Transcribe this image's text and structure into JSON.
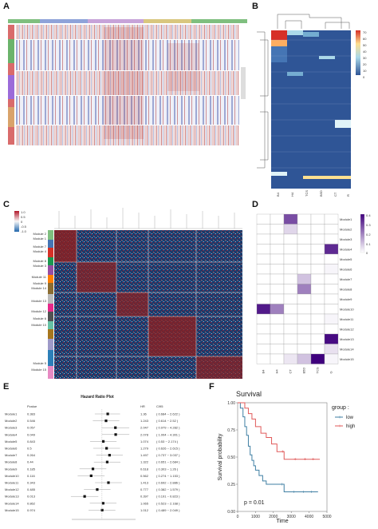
{
  "panels": {
    "A": "A",
    "B": "B",
    "C": "C",
    "D": "D",
    "E": "E",
    "F": "F"
  },
  "panel_b": {
    "legend_ticks": [
      "70",
      "60",
      "50",
      "40",
      "30",
      "20",
      "10",
      "0"
    ],
    "col_labels": [
      "B4",
      "H4",
      "TCS",
      "B5D",
      "CT",
      "R"
    ]
  },
  "panel_c": {
    "legend_ticks": [
      "1.0",
      "0.5",
      "0",
      "-0.5",
      "-1.0"
    ],
    "modules": [
      "Module 2",
      "Module 1",
      "Module 7",
      "Module 4",
      "Module 8",
      "Module 3",
      "Module 11",
      "Module 9",
      "Module 14",
      "Module 13",
      "Module 12",
      "Module 6",
      "Module 10",
      "Module 5",
      "Module 15"
    ]
  },
  "panel_d": {
    "columns": [
      "B4",
      "H4",
      "CT",
      "B5D",
      "TCS",
      "G"
    ],
    "modules": [
      "Module1",
      "Module2",
      "Module3",
      "Module4",
      "Module5",
      "Module6",
      "Module7",
      "Module8",
      "Module9",
      "Module10",
      "Module11",
      "Module12",
      "Module13",
      "Module14",
      "Module15"
    ],
    "legend_ticks": [
      "0.4",
      "0.3",
      "0.2",
      "0.1",
      "0"
    ],
    "cells": [
      [
        0,
        0,
        0.35,
        0,
        0,
        0
      ],
      [
        0,
        0,
        0.08,
        0,
        0,
        0
      ],
      [
        0,
        0,
        0,
        0,
        0,
        0
      ],
      [
        0,
        0,
        0,
        0,
        0,
        0.42
      ],
      [
        0,
        0,
        0,
        0,
        0,
        0
      ],
      [
        0,
        0,
        0,
        0,
        0,
        0.02
      ],
      [
        0,
        0,
        0,
        0.12,
        0,
        0
      ],
      [
        0,
        0,
        0,
        0.25,
        0,
        0
      ],
      [
        0,
        0,
        0,
        0,
        0,
        0
      ],
      [
        0.45,
        0.25,
        0,
        0,
        0,
        0
      ],
      [
        0,
        0,
        0,
        0,
        0,
        0.02
      ],
      [
        0,
        0,
        0,
        0,
        0,
        0
      ],
      [
        0,
        0,
        0,
        0,
        0,
        0.48
      ],
      [
        0,
        0,
        0,
        0,
        0,
        0.06
      ],
      [
        0,
        0,
        0.05,
        0.12,
        0.5,
        0.02
      ]
    ]
  },
  "panel_e": {
    "title": "Hazard Ratio Plot",
    "headers": {
      "pvalue": "Pvalue",
      "hr": "HR",
      "ci": "CI95"
    },
    "rows": [
      {
        "name": "Module1",
        "p": "0.383",
        "hr": "1.36",
        "ci": "( 0.684 ~ 2.622 )",
        "hr_value": 1.36
      },
      {
        "name": "Module2",
        "p": "0.546",
        "hr": "1.243",
        "ci": "( 0.614 ~ 2.52 )",
        "hr_value": 1.243
      },
      {
        "name": "Module3",
        "p": "0.057",
        "hr": "2.047",
        "ci": "( 0.979 ~ 4.282 )",
        "hr_value": 2.047
      },
      {
        "name": "Module4",
        "p": "0.049",
        "hr": "2.078",
        "ci": "( 1.004 ~ 4.301 )",
        "hr_value": 2.078
      },
      {
        "name": "Module5",
        "p": "0.843",
        "hr": "1.074",
        "ci": "( 0.53 ~ 2.174 )",
        "hr_value": 1.074
      },
      {
        "name": "Module6",
        "p": "0.5",
        "hr": "1.279",
        "ci": "( 0.626 ~ 2.615 )",
        "hr_value": 1.279
      },
      {
        "name": "Module7",
        "p": "0.264",
        "hr": "1.497",
        "ci": "( 0.737 ~ 3.037 )",
        "hr_value": 1.497
      },
      {
        "name": "Module8",
        "p": "0.44",
        "hr": "1.322",
        "ci": "( 0.651 ~ 2.684 )",
        "hr_value": 1.322
      },
      {
        "name": "Module9",
        "p": "0.185",
        "hr": "0.618",
        "ci": "( 0.303 ~ 1.26 )",
        "hr_value": 0.618
      },
      {
        "name": "Module10",
        "p": "0.116",
        "hr": "0.562",
        "ci": "( 0.274 ~ 1.153 )",
        "hr_value": 0.562
      },
      {
        "name": "Module11",
        "p": "0.343",
        "hr": "1.413",
        "ci": "( 0.692 ~ 2.886 )",
        "hr_value": 1.413
      },
      {
        "name": "Module12",
        "p": "0.485",
        "hr": "0.777",
        "ci": "( 0.382 ~ 1.579 )",
        "hr_value": 0.777
      },
      {
        "name": "Module13",
        "p": "0.013",
        "hr": "0.397",
        "ci": "( 0.191 ~ 0.823 )",
        "hr_value": 0.397
      },
      {
        "name": "Module14",
        "p": "0.862",
        "hr": "1.065",
        "ci": "( 0.523 ~ 2.168 )",
        "hr_value": 1.065
      },
      {
        "name": "Module15",
        "p": "0.974",
        "hr": "1.012",
        "ci": "( 0.489 ~ 2.049 )",
        "hr_value": 1.012
      }
    ]
  },
  "chart_data": {
    "type": "line",
    "title": "Survival",
    "xlabel": "Time",
    "ylabel": "Survival probability",
    "xlim": [
      0,
      5000
    ],
    "ylim": [
      0,
      1
    ],
    "x_ticks": [
      "0",
      "1000",
      "2000",
      "3000",
      "4000",
      "5000"
    ],
    "y_ticks": [
      "0.00",
      "0.25",
      "0.50",
      "0.75",
      "1.00"
    ],
    "legend_title": "group :",
    "annotation": "p = 0.01",
    "series": [
      {
        "name": "low",
        "color": "#3f7fa3",
        "x": [
          0,
          150,
          300,
          400,
          500,
          600,
          700,
          800,
          900,
          1000,
          1200,
          1400,
          1600,
          2000,
          2600,
          3300,
          4500
        ],
        "y": [
          1.0,
          0.95,
          0.87,
          0.78,
          0.7,
          0.6,
          0.52,
          0.47,
          0.42,
          0.38,
          0.33,
          0.28,
          0.25,
          0.25,
          0.18,
          0.18,
          0.18
        ]
      },
      {
        "name": "high",
        "color": "#e05a5a",
        "x": [
          0,
          200,
          400,
          600,
          800,
          1000,
          1300,
          1600,
          1900,
          2200,
          2600,
          3000,
          4600
        ],
        "y": [
          1.0,
          1.0,
          0.95,
          0.9,
          0.85,
          0.78,
          0.72,
          0.68,
          0.62,
          0.55,
          0.48,
          0.48,
          0.48
        ]
      }
    ]
  }
}
